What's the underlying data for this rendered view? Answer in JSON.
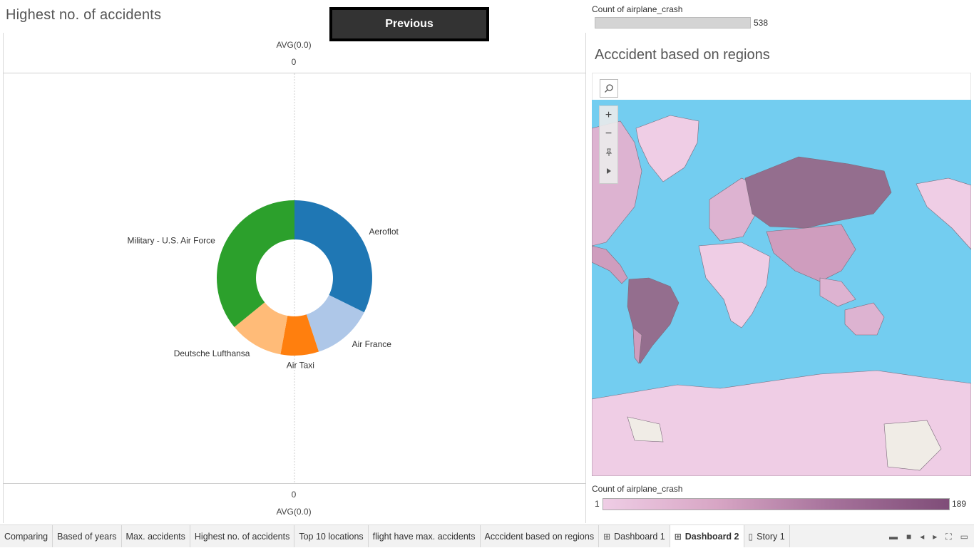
{
  "left_panel": {
    "title": "Highest no. of accidents",
    "previous_button": "Previous",
    "top_axis": {
      "label": "AVG(0.0)",
      "tick": "0"
    },
    "bottom_axis": {
      "label": "AVG(0.0)",
      "tick": "0"
    }
  },
  "chart_data": {
    "type": "pie",
    "title": "Highest no. of accidents",
    "donut": true,
    "slices": [
      {
        "label": "Aeroflot",
        "value": 179,
        "color": "#1f77b4"
      },
      {
        "label": "Air France",
        "value": 70,
        "color": "#aec7e8"
      },
      {
        "label": "Air Taxi",
        "value": 44,
        "color": "#ff7f0e"
      },
      {
        "label": "Deutsche Lufthansa",
        "value": 62,
        "color": "#ffbb78"
      },
      {
        "label": "Military - U.S. Air Force",
        "value": 199,
        "color": "#2ca02c"
      }
    ]
  },
  "right_panel": {
    "legend_top": {
      "title": "Count of airplane_crash",
      "value": "538"
    },
    "map_title": "Acccident based on regions",
    "map_colors": {
      "ocean": "#73cdf0",
      "low": "#efcde5",
      "mid": "#cf9dbe",
      "high": "#946e8e",
      "antarctica_land": "#f0ece6"
    },
    "legend_bottom": {
      "title": "Count of airplane_crash",
      "min": "1",
      "max": "189"
    },
    "controls": [
      "search-icon",
      "zoom-in-icon",
      "zoom-out-icon",
      "pin-icon",
      "play-icon"
    ]
  },
  "tabs": [
    {
      "label": "Comparing",
      "icon": ""
    },
    {
      "label": "Based of years",
      "icon": ""
    },
    {
      "label": "Max. accidents",
      "icon": ""
    },
    {
      "label": "Highest no. of accidents",
      "icon": ""
    },
    {
      "label": "Top 10 locations",
      "icon": ""
    },
    {
      "label": "flight have max. accidents",
      "icon": ""
    },
    {
      "label": "Acccident based on regions",
      "icon": ""
    },
    {
      "label": "Dashboard 1",
      "icon": "dashboard-icon"
    },
    {
      "label": "Dashboard 2",
      "icon": "dashboard-icon",
      "active": true
    },
    {
      "label": "Story 1",
      "icon": "story-icon"
    }
  ]
}
